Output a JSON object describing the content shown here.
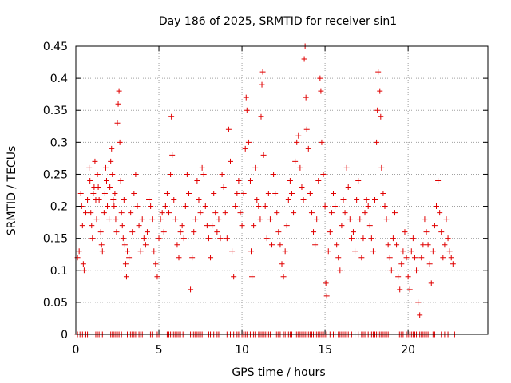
{
  "chart_data": {
    "type": "scatter",
    "title": "Day 186 of 2025, SRMTID for receiver sin1",
    "xlabel": "GPS time / hours",
    "ylabel": "SRMTID / TECUs",
    "xlim": [
      0,
      24.8
    ],
    "ylim": [
      0,
      0.45
    ],
    "x_ticks": [
      0,
      5,
      10,
      15,
      20
    ],
    "x_tick_labels": [
      "0",
      "5",
      "10",
      "15",
      "20"
    ],
    "y_ticks": [
      0,
      0.05,
      0.1,
      0.15,
      0.2,
      0.25,
      0.3,
      0.35,
      0.4,
      0.45
    ],
    "y_tick_labels": [
      "0",
      "0.05",
      "0.1",
      "0.15",
      "0.2",
      "0.25",
      "0.3",
      "0.35",
      "0.4",
      "0.45"
    ],
    "grid": true,
    "marker": "+",
    "color": "#e00000",
    "series": [
      {
        "name": "SRMTID",
        "points": [
          [
            0.1,
            0.12
          ],
          [
            0.2,
            0.13
          ],
          [
            0.3,
            0.22
          ],
          [
            0.35,
            0.2
          ],
          [
            0.4,
            0.17
          ],
          [
            0.45,
            0.11
          ],
          [
            0.5,
            0.1
          ],
          [
            0.6,
            0.19
          ],
          [
            0.7,
            0.21
          ],
          [
            0.8,
            0.26
          ],
          [
            0.85,
            0.24
          ],
          [
            0.9,
            0.19
          ],
          [
            0.95,
            0.17
          ],
          [
            1.0,
            0.15
          ],
          [
            1.05,
            0.22
          ],
          [
            1.1,
            0.23
          ],
          [
            1.15,
            0.27
          ],
          [
            1.2,
            0.21
          ],
          [
            1.25,
            0.18
          ],
          [
            1.3,
            0.25
          ],
          [
            1.35,
            0.23
          ],
          [
            1.4,
            0.21
          ],
          [
            1.5,
            0.16
          ],
          [
            1.55,
            0.14
          ],
          [
            1.6,
            0.13
          ],
          [
            1.7,
            0.19
          ],
          [
            1.75,
            0.22
          ],
          [
            1.8,
            0.26
          ],
          [
            1.85,
            0.24
          ],
          [
            1.9,
            0.2
          ],
          [
            2.0,
            0.18
          ],
          [
            2.05,
            0.23
          ],
          [
            2.1,
            0.27
          ],
          [
            2.15,
            0.29
          ],
          [
            2.2,
            0.25
          ],
          [
            2.25,
            0.21
          ],
          [
            2.3,
            0.2
          ],
          [
            2.35,
            0.22
          ],
          [
            2.4,
            0.18
          ],
          [
            2.45,
            0.16
          ],
          [
            2.5,
            0.33
          ],
          [
            2.55,
            0.36
          ],
          [
            2.6,
            0.38
          ],
          [
            2.65,
            0.3
          ],
          [
            2.7,
            0.24
          ],
          [
            2.75,
            0.19
          ],
          [
            2.8,
            0.17
          ],
          [
            2.85,
            0.15
          ],
          [
            2.9,
            0.21
          ],
          [
            2.95,
            0.14
          ],
          [
            3.0,
            0.11
          ],
          [
            3.05,
            0.09
          ],
          [
            3.1,
            0.13
          ],
          [
            3.2,
            0.12
          ],
          [
            3.3,
            0.19
          ],
          [
            3.4,
            0.16
          ],
          [
            3.5,
            0.22
          ],
          [
            3.6,
            0.25
          ],
          [
            3.7,
            0.2
          ],
          [
            3.8,
            0.17
          ],
          [
            3.9,
            0.13
          ],
          [
            4.0,
            0.18
          ],
          [
            4.1,
            0.15
          ],
          [
            4.2,
            0.14
          ],
          [
            4.3,
            0.16
          ],
          [
            4.4,
            0.21
          ],
          [
            4.5,
            0.2
          ],
          [
            4.6,
            0.18
          ],
          [
            4.7,
            0.13
          ],
          [
            4.8,
            0.11
          ],
          [
            4.9,
            0.09
          ],
          [
            5.0,
            0.15
          ],
          [
            5.1,
            0.18
          ],
          [
            5.2,
            0.19
          ],
          [
            5.3,
            0.16
          ],
          [
            5.4,
            0.2
          ],
          [
            5.5,
            0.22
          ],
          [
            5.6,
            0.19
          ],
          [
            5.7,
            0.25
          ],
          [
            5.75,
            0.34
          ],
          [
            5.8,
            0.28
          ],
          [
            5.9,
            0.21
          ],
          [
            6.0,
            0.18
          ],
          [
            6.1,
            0.14
          ],
          [
            6.2,
            0.12
          ],
          [
            6.3,
            0.16
          ],
          [
            6.4,
            0.17
          ],
          [
            6.5,
            0.15
          ],
          [
            6.6,
            0.2
          ],
          [
            6.7,
            0.25
          ],
          [
            6.8,
            0.22
          ],
          [
            6.9,
            0.07
          ],
          [
            7.0,
            0.12
          ],
          [
            7.1,
            0.16
          ],
          [
            7.2,
            0.18
          ],
          [
            7.3,
            0.24
          ],
          [
            7.4,
            0.21
          ],
          [
            7.5,
            0.19
          ],
          [
            7.6,
            0.26
          ],
          [
            7.7,
            0.25
          ],
          [
            7.8,
            0.2
          ],
          [
            7.9,
            0.17
          ],
          [
            8.0,
            0.15
          ],
          [
            8.1,
            0.12
          ],
          [
            8.2,
            0.17
          ],
          [
            8.3,
            0.22
          ],
          [
            8.4,
            0.19
          ],
          [
            8.5,
            0.16
          ],
          [
            8.6,
            0.18
          ],
          [
            8.7,
            0.15
          ],
          [
            8.8,
            0.25
          ],
          [
            8.9,
            0.23
          ],
          [
            9.0,
            0.19
          ],
          [
            9.1,
            0.15
          ],
          [
            9.2,
            0.32
          ],
          [
            9.3,
            0.27
          ],
          [
            9.4,
            0.13
          ],
          [
            9.5,
            0.09
          ],
          [
            9.6,
            0.2
          ],
          [
            9.7,
            0.22
          ],
          [
            9.8,
            0.24
          ],
          [
            9.9,
            0.19
          ],
          [
            10.0,
            0.17
          ],
          [
            10.1,
            0.22
          ],
          [
            10.2,
            0.29
          ],
          [
            10.25,
            0.37
          ],
          [
            10.3,
            0.35
          ],
          [
            10.4,
            0.3
          ],
          [
            10.5,
            0.24
          ],
          [
            10.55,
            0.13
          ],
          [
            10.6,
            0.09
          ],
          [
            10.7,
            0.17
          ],
          [
            10.8,
            0.26
          ],
          [
            10.9,
            0.21
          ],
          [
            11.0,
            0.2
          ],
          [
            11.1,
            0.18
          ],
          [
            11.15,
            0.34
          ],
          [
            11.2,
            0.39
          ],
          [
            11.25,
            0.41
          ],
          [
            11.3,
            0.28
          ],
          [
            11.4,
            0.2
          ],
          [
            11.5,
            0.15
          ],
          [
            11.6,
            0.22
          ],
          [
            11.7,
            0.18
          ],
          [
            11.8,
            0.14
          ],
          [
            11.9,
            0.25
          ],
          [
            12.0,
            0.22
          ],
          [
            12.1,
            0.19
          ],
          [
            12.2,
            0.16
          ],
          [
            12.3,
            0.14
          ],
          [
            12.4,
            0.11
          ],
          [
            12.5,
            0.09
          ],
          [
            12.6,
            0.13
          ],
          [
            12.7,
            0.17
          ],
          [
            12.8,
            0.21
          ],
          [
            12.9,
            0.24
          ],
          [
            13.0,
            0.22
          ],
          [
            13.1,
            0.19
          ],
          [
            13.2,
            0.27
          ],
          [
            13.3,
            0.3
          ],
          [
            13.4,
            0.31
          ],
          [
            13.5,
            0.26
          ],
          [
            13.6,
            0.23
          ],
          [
            13.7,
            0.21
          ],
          [
            13.75,
            0.43
          ],
          [
            13.8,
            0.45
          ],
          [
            13.85,
            0.37
          ],
          [
            13.9,
            0.32
          ],
          [
            14.0,
            0.29
          ],
          [
            14.1,
            0.22
          ],
          [
            14.2,
            0.19
          ],
          [
            14.3,
            0.16
          ],
          [
            14.4,
            0.14
          ],
          [
            14.5,
            0.18
          ],
          [
            14.6,
            0.24
          ],
          [
            14.7,
            0.4
          ],
          [
            14.75,
            0.38
          ],
          [
            14.8,
            0.3
          ],
          [
            14.9,
            0.25
          ],
          [
            15.0,
            0.2
          ],
          [
            15.05,
            0.08
          ],
          [
            15.1,
            0.06
          ],
          [
            15.2,
            0.13
          ],
          [
            15.3,
            0.16
          ],
          [
            15.4,
            0.19
          ],
          [
            15.5,
            0.22
          ],
          [
            15.6,
            0.2
          ],
          [
            15.7,
            0.14
          ],
          [
            15.8,
            0.12
          ],
          [
            15.9,
            0.1
          ],
          [
            16.0,
            0.17
          ],
          [
            16.1,
            0.21
          ],
          [
            16.2,
            0.19
          ],
          [
            16.3,
            0.26
          ],
          [
            16.4,
            0.23
          ],
          [
            16.5,
            0.18
          ],
          [
            16.6,
            0.15
          ],
          [
            16.7,
            0.16
          ],
          [
            16.8,
            0.13
          ],
          [
            16.9,
            0.21
          ],
          [
            17.0,
            0.24
          ],
          [
            17.1,
            0.18
          ],
          [
            17.2,
            0.12
          ],
          [
            17.3,
            0.15
          ],
          [
            17.4,
            0.19
          ],
          [
            17.5,
            0.21
          ],
          [
            17.6,
            0.2
          ],
          [
            17.7,
            0.17
          ],
          [
            17.8,
            0.15
          ],
          [
            17.9,
            0.13
          ],
          [
            18.0,
            0.21
          ],
          [
            18.1,
            0.3
          ],
          [
            18.15,
            0.35
          ],
          [
            18.2,
            0.41
          ],
          [
            18.3,
            0.38
          ],
          [
            18.35,
            0.34
          ],
          [
            18.4,
            0.26
          ],
          [
            18.5,
            0.22
          ],
          [
            18.6,
            0.2
          ],
          [
            18.7,
            0.18
          ],
          [
            18.8,
            0.14
          ],
          [
            18.9,
            0.12
          ],
          [
            19.0,
            0.1
          ],
          [
            19.1,
            0.15
          ],
          [
            19.2,
            0.19
          ],
          [
            19.3,
            0.14
          ],
          [
            19.4,
            0.09
          ],
          [
            19.5,
            0.07
          ],
          [
            19.6,
            0.11
          ],
          [
            19.7,
            0.13
          ],
          [
            19.8,
            0.16
          ],
          [
            19.9,
            0.12
          ],
          [
            20.0,
            0.09
          ],
          [
            20.1,
            0.07
          ],
          [
            20.2,
            0.13
          ],
          [
            20.3,
            0.15
          ],
          [
            20.4,
            0.12
          ],
          [
            20.5,
            0.1
          ],
          [
            20.6,
            0.05
          ],
          [
            20.7,
            0.03
          ],
          [
            20.8,
            0.12
          ],
          [
            20.9,
            0.14
          ],
          [
            21.0,
            0.18
          ],
          [
            21.1,
            0.16
          ],
          [
            21.2,
            0.14
          ],
          [
            21.3,
            0.11
          ],
          [
            21.4,
            0.08
          ],
          [
            21.5,
            0.13
          ],
          [
            21.6,
            0.17
          ],
          [
            21.7,
            0.2
          ],
          [
            21.8,
            0.24
          ],
          [
            21.9,
            0.19
          ],
          [
            22.0,
            0.16
          ],
          [
            22.1,
            0.12
          ],
          [
            22.2,
            0.14
          ],
          [
            22.3,
            0.18
          ],
          [
            22.4,
            0.15
          ],
          [
            22.5,
            0.13
          ],
          [
            22.6,
            0.12
          ],
          [
            22.7,
            0.11
          ]
        ]
      }
    ],
    "zero_points_x": [
      0.1,
      0.25,
      0.4,
      0.55,
      0.6,
      0.7,
      1.2,
      1.3,
      1.4,
      1.6,
      2.1,
      2.2,
      2.3,
      2.4,
      2.5,
      2.6,
      2.75,
      3.1,
      3.2,
      3.3,
      3.4,
      3.5,
      3.6,
      3.8,
      3.9,
      4.0,
      4.4,
      4.5,
      4.6,
      4.9,
      5.0,
      5.5,
      5.6,
      5.7,
      5.8,
      5.9,
      6.0,
      6.1,
      6.2,
      6.3,
      6.45,
      6.9,
      7.0,
      7.1,
      7.2,
      7.3,
      7.4,
      7.5,
      7.6,
      8.0,
      8.1,
      8.3,
      8.5,
      8.6,
      9.1,
      9.3,
      9.5,
      9.7,
      9.8,
      10.0,
      10.1,
      10.2,
      10.3,
      10.5,
      10.6,
      10.7,
      10.8,
      11.0,
      11.1,
      11.2,
      11.3,
      11.4,
      11.5,
      11.6,
      11.7,
      12.0,
      12.1,
      12.2,
      12.3,
      12.5,
      12.6,
      12.8,
      12.9,
      13.0,
      13.2,
      13.3,
      13.4,
      13.5,
      13.6,
      13.7,
      13.8,
      13.9,
      14.0,
      14.1,
      14.2,
      14.3,
      14.4,
      14.5,
      14.6,
      14.7,
      14.8,
      14.9,
      15.0,
      15.1,
      15.3,
      15.5,
      15.6,
      15.8,
      15.9,
      16.0,
      16.1,
      16.2,
      16.3,
      16.4,
      16.6,
      16.8,
      17.0,
      17.2,
      17.3,
      17.4,
      17.6,
      17.8,
      17.9,
      18.0,
      18.1,
      18.2,
      18.3,
      18.4,
      18.5,
      18.6,
      18.7,
      18.8,
      19.4,
      19.5,
      19.6,
      19.7,
      19.9,
      20.0,
      20.1,
      20.2,
      20.3,
      20.4,
      20.5,
      20.7,
      20.8,
      20.9,
      21.0,
      21.1,
      21.2,
      21.5,
      21.6,
      22.0,
      22.2,
      22.4,
      22.8
    ]
  }
}
